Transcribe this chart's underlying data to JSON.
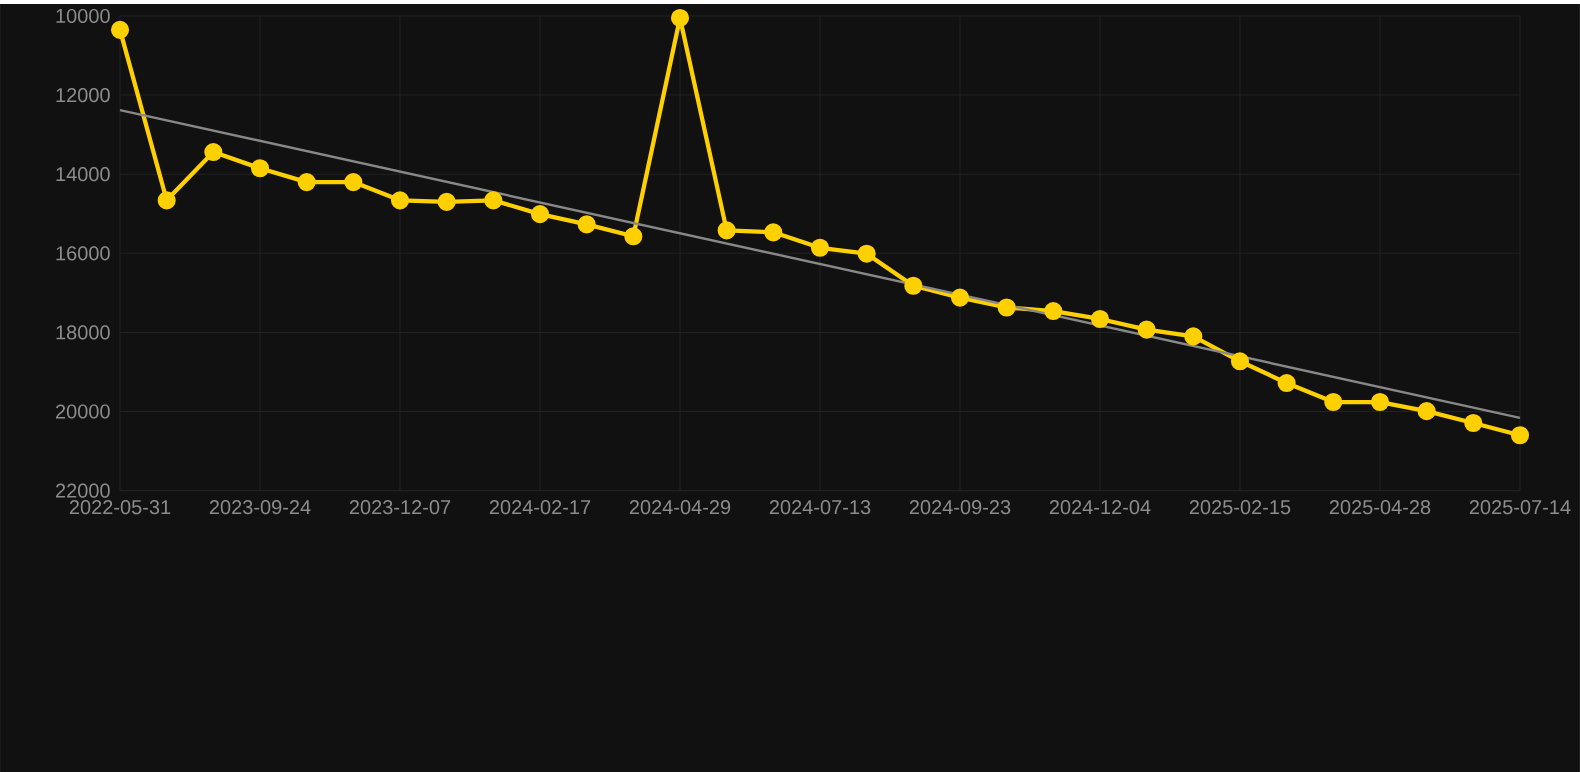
{
  "chart_data": {
    "type": "line",
    "categories": [
      "2022-05-31",
      null,
      null,
      "2023-09-24",
      null,
      null,
      "2023-12-07",
      null,
      null,
      "2024-02-17",
      null,
      null,
      "2024-04-29",
      null,
      null,
      "2024-07-13",
      null,
      null,
      "2024-09-23",
      null,
      null,
      "2024-12-04",
      null,
      null,
      "2025-02-15",
      null,
      null,
      "2025-04-28",
      null,
      null,
      "2025-07-14"
    ],
    "series": [
      {
        "color": "#ffd000",
        "marker": "circle",
        "values": [
          10350,
          14660,
          13440,
          13850,
          14200,
          14200,
          14660,
          14700,
          14660,
          15010,
          15270,
          15570,
          10050,
          15420,
          15470,
          15860,
          16010,
          16820,
          17120,
          17370,
          17460,
          17660,
          17930,
          18100,
          18730,
          19280,
          19760,
          19760,
          19990,
          20290,
          20600
        ]
      },
      {
        "type": "line",
        "color": "#888888",
        "marker": "none",
        "values": [
          12380,
          null,
          null,
          null,
          null,
          null,
          null,
          null,
          null,
          null,
          null,
          null,
          null,
          null,
          null,
          null,
          null,
          null,
          null,
          null,
          null,
          null,
          null,
          null,
          null,
          null,
          null,
          null,
          null,
          null,
          20160
        ]
      }
    ],
    "ylim": [
      22000,
      10000
    ],
    "yticks": [
      10000,
      12000,
      14000,
      16000,
      18000,
      20000,
      22000
    ],
    "grid": true
  }
}
